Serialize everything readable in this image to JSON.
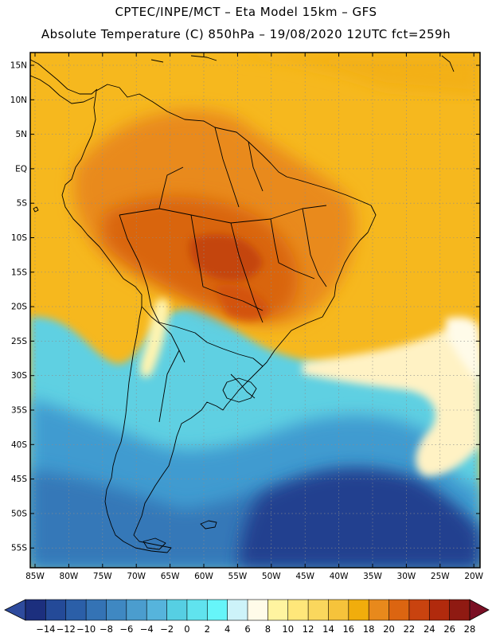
{
  "header": {
    "line1": "CPTEC/INPE/MCT –  Eta Model 15km – GFS",
    "line2": "Absolute Temperature (C) 850hPa – 19/08/2020 12UTC fct=259h"
  },
  "map": {
    "lat_labels": [
      "15N",
      "10N",
      "5N",
      "EQ",
      "5S",
      "10S",
      "15S",
      "20S",
      "25S",
      "30S",
      "35S",
      "40S",
      "45S",
      "50S",
      "55S"
    ],
    "lon_labels": [
      "85W",
      "80W",
      "75W",
      "70W",
      "65W",
      "60W",
      "55W",
      "50W",
      "45W",
      "40W",
      "35W",
      "30W",
      "25W",
      "20W"
    ]
  },
  "colorbar": {
    "labels": [
      "-14",
      "-12",
      "-10",
      "-8",
      "-6",
      "-4",
      "-2",
      "0",
      "2",
      "4",
      "6",
      "8",
      "10",
      "12",
      "14",
      "16",
      "18",
      "20",
      "22",
      "24",
      "26",
      "28"
    ],
    "colors": [
      "#1c2f7e",
      "#244a98",
      "#2b5fa8",
      "#3473b5",
      "#3f88c2",
      "#4b9dce",
      "#56b4dc",
      "#56cfe3",
      "#60e3ee",
      "#66f5f9",
      "#cdf3f9",
      "#fffbe9",
      "#fff4a0",
      "#ffe77a",
      "#fad75d",
      "#f6c33b",
      "#f1ad0c",
      "#e8891c",
      "#dc6511",
      "#c9430f",
      "#b12a0d",
      "#8f1a12"
    ],
    "under_color": "#2e4b9d",
    "over_color": "#7a0f24"
  }
}
